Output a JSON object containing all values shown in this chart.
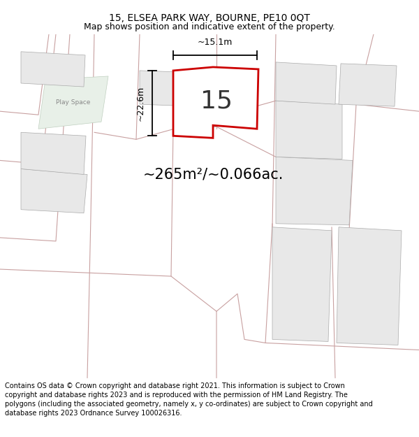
{
  "title_line1": "15, ELSEA PARK WAY, BOURNE, PE10 0QT",
  "title_line2": "Map shows position and indicative extent of the property.",
  "area_text": "~265m²/~0.066ac.",
  "dim_width": "~15.1m",
  "dim_height": "~22.6m",
  "house_number": "15",
  "footer": "Contains OS data © Crown copyright and database right 2021. This information is subject to Crown copyright and database rights 2023 and is reproduced with the permission of HM Land Registry. The polygons (including the associated geometry, namely x, y co-ordinates) are subject to Crown copyright and database rights 2023 Ordnance Survey 100026316.",
  "bg_color": "white",
  "map_bg": "white",
  "plot_fill": "white",
  "neighbor_fill": "#e8e8e8",
  "red_outline": "#cc0000",
  "neighbor_outline": "#c8a0a0",
  "neighbor_lw": 0.7,
  "title_fontsize": 10,
  "subtitle_fontsize": 9,
  "footer_fontsize": 7.0,
  "house_fontsize": 26,
  "area_fontsize": 15
}
